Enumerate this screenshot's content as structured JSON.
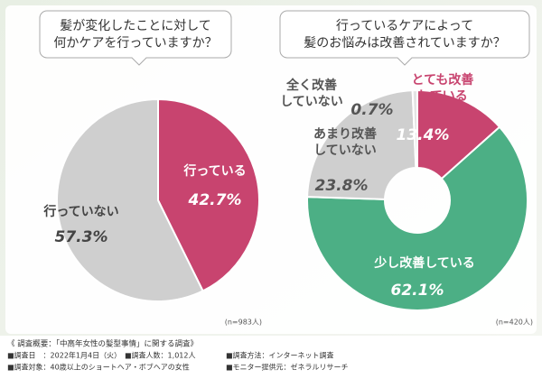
{
  "chart_data": [
    {
      "type": "pie",
      "title": [
        "髪が変化したことに対して",
        "何かケアを行っていますか？"
      ],
      "categories": [
        "行っている",
        "行っていない"
      ],
      "values": [
        42.7,
        57.3
      ],
      "value_labels": [
        "42.7%",
        "57.3%"
      ],
      "colors": [
        "#c8446f",
        "#cfcfcf"
      ],
      "note": "(n=983人)"
    },
    {
      "type": "donut",
      "title": [
        "行っているケアによって",
        "髪のお悩みは改善されていますか？"
      ],
      "categories": [
        "とても改善\nしている",
        "少し改善している",
        "あまり改善\nしていない",
        "全く改善\nしていない"
      ],
      "values": [
        13.4,
        62.1,
        23.8,
        0.7
      ],
      "value_labels": [
        "13.4%",
        "62.1%",
        "23.8%",
        "0.7%"
      ],
      "colors": [
        "#c8446f",
        "#4caf85",
        "#cfcfcf",
        "#e4e4e4"
      ],
      "note": "(n=420人)"
    }
  ],
  "footer": {
    "heading": "《 調査概要：「中高年女性の髪型事情」に関する調査》",
    "items": [
      "■調査日　：2022年1月4日（火）",
      "■調査人数：1,012人",
      "■調査方法：インターネット調査",
      "■調査対象：40歳以上のショートヘア・ボブヘアの女性",
      "■モニター提供元：ゼネラルリサーチ"
    ]
  }
}
